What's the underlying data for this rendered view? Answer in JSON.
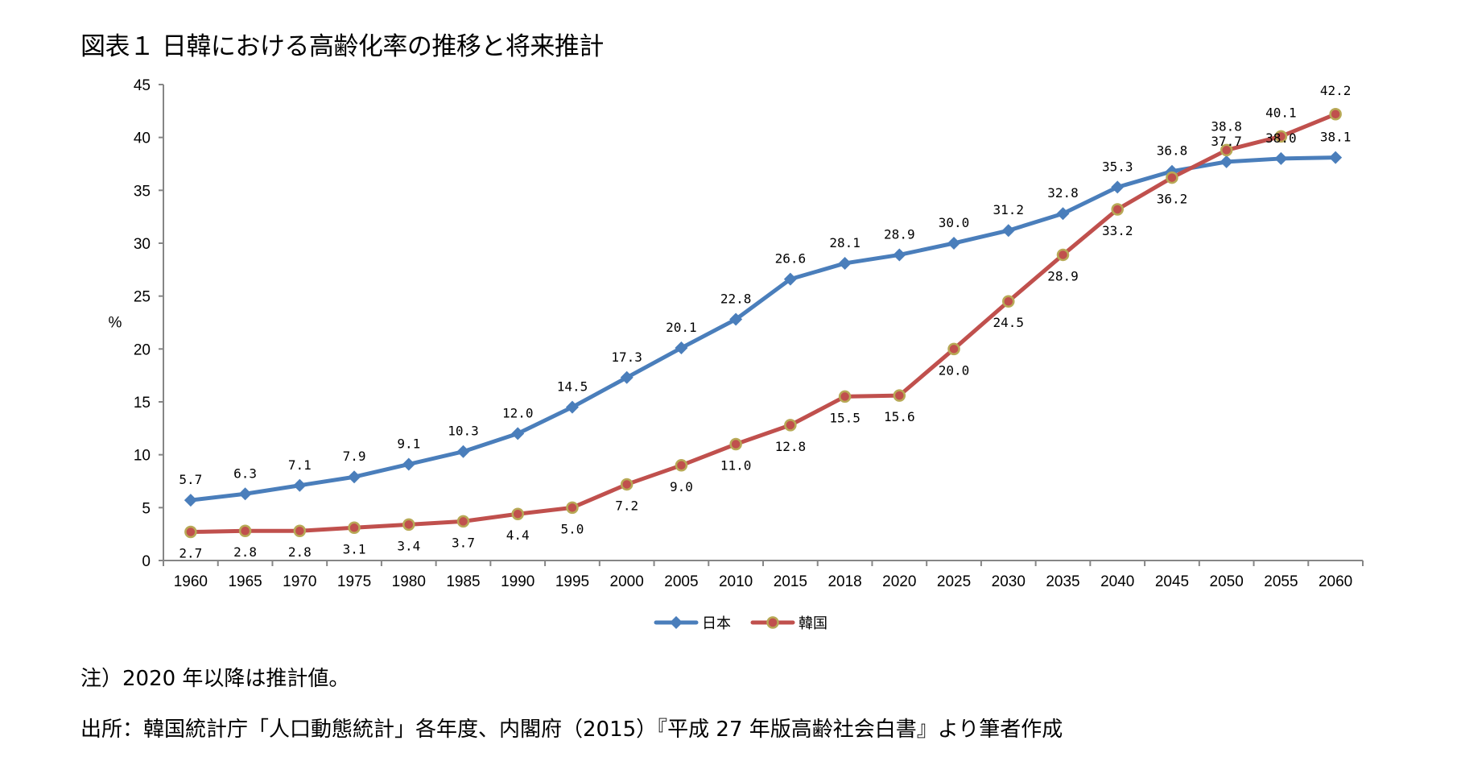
{
  "title": "図表１ 日韓における高齢化率の推移と将来推計",
  "notes": {
    "note": "注）2020 年以降は推計値。",
    "source": "出所：韓国統計庁「人口動態統計」各年度、内閣府（2015）『平成 27 年版高齢社会白書』より筆者作成"
  },
  "colors": {
    "japan": "#4a7ebb",
    "korea": "#c0504d",
    "korea_marker_border": "#b8a956",
    "axis": "#868686"
  },
  "chart_data": {
    "type": "line",
    "title": "図表１ 日韓における高齢化率の推移と将来推計",
    "xlabel": "",
    "ylabel": "%",
    "ylim": [
      0,
      45
    ],
    "yticks": [
      0,
      5,
      10,
      15,
      20,
      25,
      30,
      35,
      40,
      45
    ],
    "grid": false,
    "legend_position": "bottom",
    "categories": [
      "1960",
      "1965",
      "1970",
      "1975",
      "1980",
      "1985",
      "1990",
      "1995",
      "2000",
      "2005",
      "2010",
      "2015",
      "2018",
      "2020",
      "2025",
      "2030",
      "2035",
      "2040",
      "2045",
      "2050",
      "2055",
      "2060"
    ],
    "series": [
      {
        "name": "日本",
        "marker": "diamond",
        "values": [
          5.7,
          6.3,
          7.1,
          7.9,
          9.1,
          10.3,
          12.0,
          14.5,
          17.3,
          20.1,
          22.8,
          26.6,
          28.1,
          28.9,
          30.0,
          31.2,
          32.8,
          35.3,
          36.8,
          37.7,
          38.0,
          38.1
        ],
        "labels": [
          "5.7",
          "6.3",
          "7.1",
          "7.9",
          "9.1",
          "10.3",
          "12.0",
          "14.5",
          "17.3",
          "20.1",
          "22.8",
          "26.6",
          "28.1",
          "28.9",
          "30.0",
          "31.2",
          "32.8",
          "35.3",
          "36.8",
          "37.7",
          "38.0",
          "38.1"
        ]
      },
      {
        "name": "韓国",
        "marker": "circle",
        "values": [
          2.7,
          2.8,
          2.8,
          3.1,
          3.4,
          3.7,
          4.4,
          5.0,
          7.2,
          9.0,
          11.0,
          12.8,
          15.5,
          15.6,
          20.0,
          24.5,
          28.9,
          33.2,
          36.2,
          38.8,
          40.1,
          42.2
        ],
        "labels": [
          "2.7",
          "2.8",
          "2.8",
          "3.1",
          "3.4",
          "3.7",
          "4.4",
          "5.0",
          "7.2",
          "9.0",
          "11.0",
          "12.8",
          "15.5",
          "15.6",
          "20.0",
          "24.5",
          "28.9",
          "33.2",
          "36.2",
          "38.8",
          "40.1",
          "42.2"
        ]
      }
    ]
  }
}
